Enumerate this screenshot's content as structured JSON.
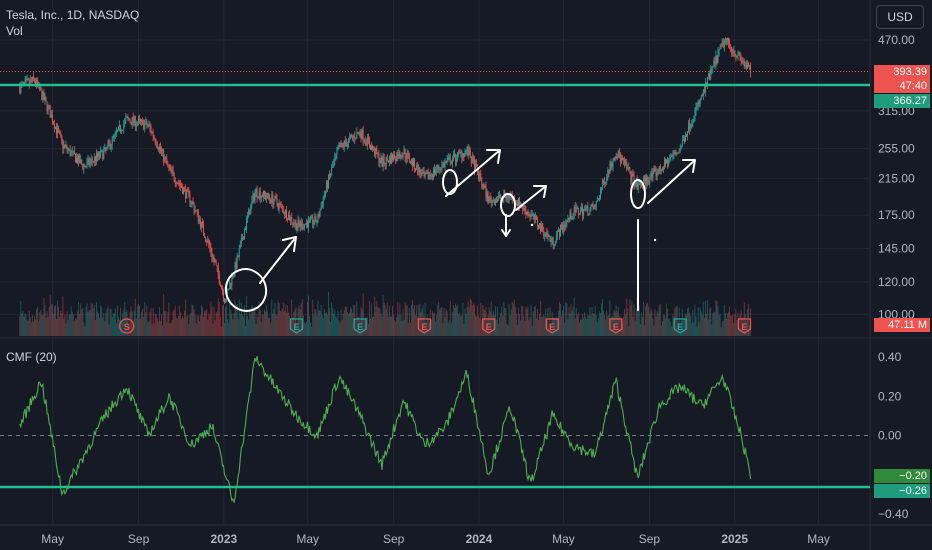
{
  "header": {
    "symbol_line": "Tesla, Inc., 1D, NASDAQ",
    "volume_label": "Vol"
  },
  "currency_button": "USD",
  "price_tags": {
    "last": "393.39",
    "countdown": "47:40",
    "level": "366.27",
    "volume": "47.11 M"
  },
  "cmf": {
    "title": "CMF (20)",
    "tag_current": "−0.20",
    "tag_level": "−0.26"
  },
  "colors": {
    "up": "#26a69a",
    "down": "#ef5350",
    "line": "#4caf50",
    "hline": "#1ec090",
    "bg": "#161a25",
    "grid": "#232733"
  },
  "chart_data": [
    {
      "type": "candlestick",
      "title": "Tesla, Inc., 1D, NASDAQ",
      "y_scale": "log",
      "y_ticks": [
        100,
        120,
        145,
        175,
        215,
        255,
        315,
        470
      ],
      "x_ticks": [
        "May",
        "Sep",
        "2023",
        "May",
        "Sep",
        "2024",
        "May",
        "Sep",
        "2025",
        "May"
      ],
      "horizontal_line": 366.27,
      "last_price": 393.39,
      "series": [
        {
          "date": "2022-03",
          "close": 360
        },
        {
          "date": "2022-04-05",
          "close": 375
        },
        {
          "date": "2022-05",
          "close": 260
        },
        {
          "date": "2022-06",
          "close": 230
        },
        {
          "date": "2022-07",
          "close": 250
        },
        {
          "date": "2022-08",
          "close": 300
        },
        {
          "date": "2022-09",
          "close": 290
        },
        {
          "date": "2022-10",
          "close": 225
        },
        {
          "date": "2022-11",
          "close": 190
        },
        {
          "date": "2022-12",
          "close": 140
        },
        {
          "date": "2023-01-03",
          "close": 108
        },
        {
          "date": "2023-01-20",
          "close": 135
        },
        {
          "date": "2023-02",
          "close": 200
        },
        {
          "date": "2023-03",
          "close": 190
        },
        {
          "date": "2023-04",
          "close": 165
        },
        {
          "date": "2023-05",
          "close": 170
        },
        {
          "date": "2023-06",
          "close": 255
        },
        {
          "date": "2023-07",
          "close": 280
        },
        {
          "date": "2023-08",
          "close": 235
        },
        {
          "date": "2023-09",
          "close": 250
        },
        {
          "date": "2023-10",
          "close": 215
        },
        {
          "date": "2023-11",
          "close": 235
        },
        {
          "date": "2023-12",
          "close": 252
        },
        {
          "date": "2024-01",
          "close": 190
        },
        {
          "date": "2024-02",
          "close": 195
        },
        {
          "date": "2024-03",
          "close": 175
        },
        {
          "date": "2024-04",
          "close": 150
        },
        {
          "date": "2024-05",
          "close": 178
        },
        {
          "date": "2024-06",
          "close": 182
        },
        {
          "date": "2024-07",
          "close": 250
        },
        {
          "date": "2024-08",
          "close": 205
        },
        {
          "date": "2024-09",
          "close": 225
        },
        {
          "date": "2024-10",
          "close": 255
        },
        {
          "date": "2024-11",
          "close": 340
        },
        {
          "date": "2024-12-18",
          "close": 470
        },
        {
          "date": "2025-01",
          "close": 410
        },
        {
          "date": "2025-01-24",
          "close": 393.39
        }
      ],
      "events": [
        {
          "label": "S",
          "date": "2022-08"
        },
        {
          "label": "E",
          "date": "2023-04"
        },
        {
          "label": "E",
          "date": "2023-07"
        },
        {
          "label": "E",
          "date": "2023-10"
        },
        {
          "label": "E",
          "date": "2024-01"
        },
        {
          "label": "E",
          "date": "2024-04"
        },
        {
          "label": "E",
          "date": "2024-07"
        },
        {
          "label": "E",
          "date": "2024-10"
        },
        {
          "label": "E",
          "date": "2025-01"
        }
      ]
    },
    {
      "type": "line",
      "title": "CMF (20)",
      "y_ticks": [
        0.4,
        0.2,
        0.0,
        -0.2,
        -0.4
      ],
      "horizontal_line": -0.26,
      "last_value": -0.2,
      "series": [
        {
          "date": "2022-03",
          "value": 0.05
        },
        {
          "date": "2022-04",
          "value": 0.28
        },
        {
          "date": "2022-05",
          "value": -0.3
        },
        {
          "date": "2022-06",
          "value": -0.1
        },
        {
          "date": "2022-07",
          "value": 0.1
        },
        {
          "date": "2022-08",
          "value": 0.25
        },
        {
          "date": "2022-09",
          "value": 0.0
        },
        {
          "date": "2022-10",
          "value": 0.2
        },
        {
          "date": "2022-11",
          "value": -0.05
        },
        {
          "date": "2022-12",
          "value": 0.05
        },
        {
          "date": "2023-01",
          "value": -0.35
        },
        {
          "date": "2023-02",
          "value": 0.4
        },
        {
          "date": "2023-03",
          "value": 0.25
        },
        {
          "date": "2023-04",
          "value": 0.1
        },
        {
          "date": "2023-05",
          "value": 0.0
        },
        {
          "date": "2023-06",
          "value": 0.3
        },
        {
          "date": "2023-07",
          "value": 0.1
        },
        {
          "date": "2023-08",
          "value": -0.15
        },
        {
          "date": "2023-09",
          "value": 0.18
        },
        {
          "date": "2023-10",
          "value": -0.05
        },
        {
          "date": "2023-11",
          "value": 0.05
        },
        {
          "date": "2023-12",
          "value": 0.32
        },
        {
          "date": "2024-01",
          "value": -0.2
        },
        {
          "date": "2024-02",
          "value": 0.15
        },
        {
          "date": "2024-03",
          "value": -0.25
        },
        {
          "date": "2024-04",
          "value": 0.1
        },
        {
          "date": "2024-05",
          "value": -0.05
        },
        {
          "date": "2024-06",
          "value": -0.1
        },
        {
          "date": "2024-07",
          "value": 0.28
        },
        {
          "date": "2024-08",
          "value": -0.22
        },
        {
          "date": "2024-09",
          "value": 0.15
        },
        {
          "date": "2024-10",
          "value": 0.25
        },
        {
          "date": "2024-11",
          "value": 0.15
        },
        {
          "date": "2024-12",
          "value": 0.3
        },
        {
          "date": "2025-01-10",
          "value": 0.0
        },
        {
          "date": "2025-01-24",
          "value": -0.2
        }
      ]
    }
  ]
}
